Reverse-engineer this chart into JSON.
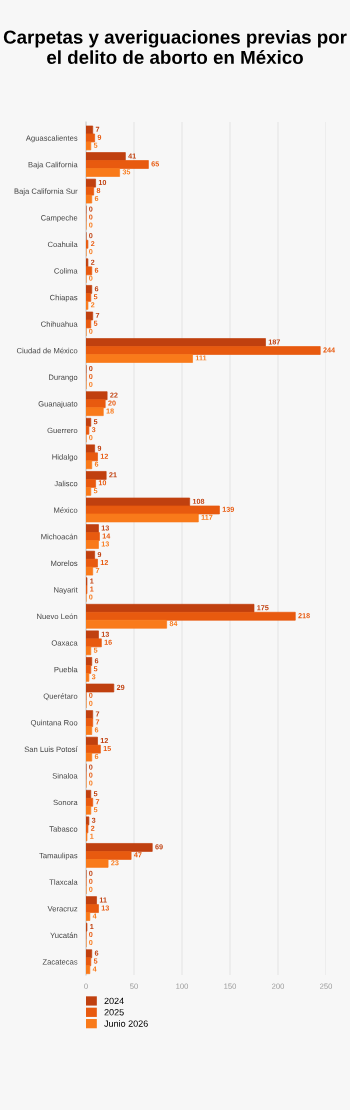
{
  "chart_data": {
    "type": "bar",
    "orientation": "horizontal",
    "title": "Carpetas y averiguaciones previas por el delito de aborto en México",
    "categories": [
      "Aguascalientes",
      "Baja California",
      "Baja California Sur",
      "Campeche",
      "Coahuila",
      "Colima",
      "Chiapas",
      "Chihuahua",
      "Ciudad de México",
      "Durango",
      "Guanajuato",
      "Guerrero",
      "Hidalgo",
      "Jalisco",
      "México",
      "Michoacán",
      "Morelos",
      "Nayarit",
      "Nuevo León",
      "Oaxaca",
      "Puebla",
      "Querétaro",
      "Quintana Roo",
      "San Luis Potosí",
      "Sinaloa",
      "Sonora",
      "Tabasco",
      "Tamaulipas",
      "Tlaxcala",
      "Veracruz",
      "Yucatán",
      "Zacatecas"
    ],
    "series": [
      {
        "name": "2024",
        "color": "#c0400f",
        "values": [
          7,
          41,
          10,
          0,
          0,
          2,
          6,
          7,
          187,
          0,
          22,
          5,
          9,
          21,
          108,
          13,
          9,
          1,
          175,
          13,
          6,
          29,
          7,
          12,
          0,
          5,
          3,
          69,
          0,
          11,
          1,
          6
        ]
      },
      {
        "name": "2025",
        "color": "#e85a0f",
        "values": [
          9,
          65,
          8,
          0,
          2,
          6,
          5,
          5,
          244,
          0,
          20,
          3,
          12,
          10,
          139,
          14,
          12,
          1,
          218,
          16,
          5,
          0,
          7,
          15,
          0,
          7,
          2,
          47,
          0,
          13,
          0,
          5
        ]
      },
      {
        "name": "Junio 2026",
        "color": "#f97a1a",
        "values": [
          5,
          35,
          6,
          0,
          0,
          0,
          2,
          0,
          111,
          0,
          18,
          0,
          6,
          5,
          117,
          13,
          7,
          0,
          84,
          5,
          3,
          0,
          6,
          6,
          0,
          5,
          1,
          23,
          0,
          4,
          0,
          4
        ]
      }
    ],
    "xlim": [
      0,
      250
    ],
    "xticks": [
      0,
      50,
      100,
      150,
      200,
      250
    ],
    "grid": "x",
    "legend": "bottom",
    "data_labels": true
  }
}
